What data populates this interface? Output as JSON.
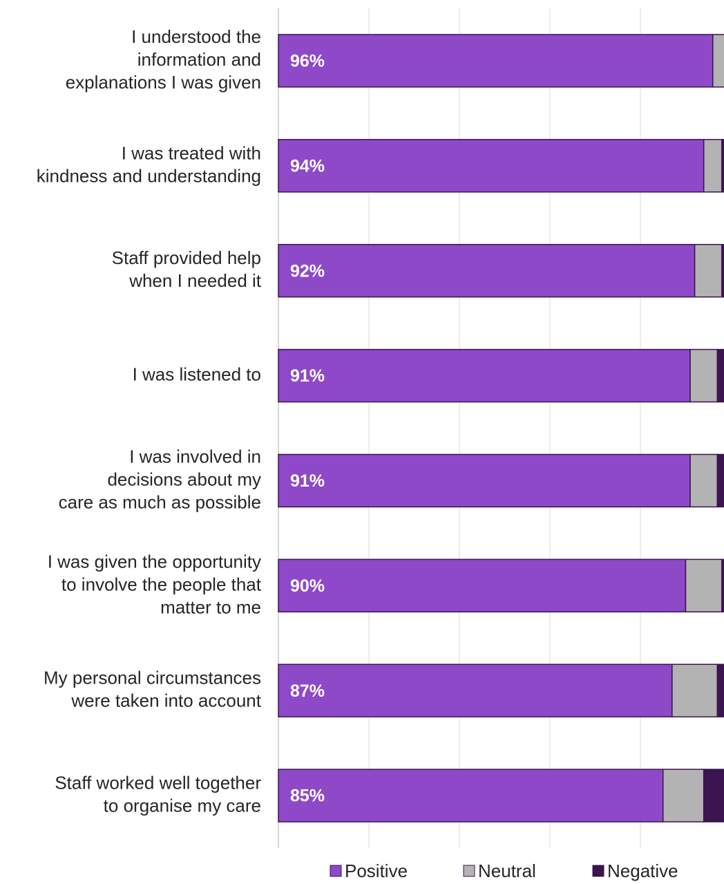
{
  "chart_data": {
    "type": "stacked_barh",
    "categories": [
      "I understood the\ninformation and\nexplanations I was given",
      "I was treated with\nkindness and understanding",
      "Staff provided help\nwhen I needed it",
      "I was listened to",
      "I was involved in\ndecisions about my\ncare as much as possible",
      "I was given the opportunity\nto involve the people that\nmatter to me",
      "My personal circumstances\nwere taken into account",
      "Staff worked well together\nto organise my care"
    ],
    "series": [
      {
        "name": "Positive",
        "color": "#8e49c8",
        "values": [
          96,
          94,
          92,
          91,
          91,
          90,
          87,
          85
        ],
        "value_labels": [
          "96%",
          "94%",
          "92%",
          "91%",
          "91%",
          "90%",
          "87%",
          "85%"
        ]
      },
      {
        "name": "Neutral",
        "color": "#b3b3b3",
        "values": [
          3,
          4,
          6,
          6,
          6,
          8,
          10,
          9
        ]
      },
      {
        "name": "Negative",
        "color": "#3b1450",
        "values": [
          1,
          2,
          2,
          3,
          3,
          2,
          3,
          6
        ]
      }
    ],
    "xlim": [
      0,
      100
    ],
    "xticks": [
      0,
      20,
      40,
      60,
      80,
      100
    ],
    "grid": true
  }
}
